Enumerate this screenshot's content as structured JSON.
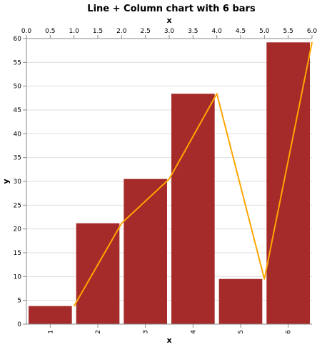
{
  "chart_data": {
    "type": "bar+line",
    "title": "Line + Column chart with 6 bars",
    "xlabel_bottom": "x",
    "xlabel_top": "x",
    "ylabel": "y",
    "categories": [
      "1",
      "2",
      "3",
      "4",
      "5",
      "6"
    ],
    "bars": [
      3.8,
      21.2,
      30.5,
      48.4,
      9.5,
      59.2
    ],
    "line": {
      "x": [
        1.0,
        2.0,
        3.0,
        4.0,
        5.0,
        6.0
      ],
      "y": [
        3.8,
        21.2,
        30.5,
        48.4,
        9.5,
        59.2
      ]
    },
    "ylim": [
      0,
      60
    ],
    "yticks": [
      0,
      5,
      10,
      15,
      20,
      25,
      30,
      35,
      40,
      45,
      50,
      55,
      60
    ],
    "top_xlim": [
      0.0,
      6.0
    ],
    "top_xticks": [
      "0.0",
      "0.5",
      "1.0",
      "1.5",
      "2.0",
      "2.5",
      "3.0",
      "3.5",
      "4.0",
      "4.5",
      "5.0",
      "5.5",
      "6.0"
    ],
    "grid": true,
    "colors": {
      "bar": "#a52a2a",
      "line": "#ffa500"
    }
  }
}
